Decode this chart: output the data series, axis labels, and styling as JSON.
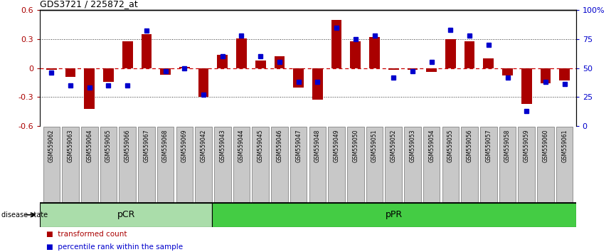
{
  "title": "GDS3721 / 225872_at",
  "samples": [
    "GSM559062",
    "GSM559063",
    "GSM559064",
    "GSM559065",
    "GSM559066",
    "GSM559067",
    "GSM559068",
    "GSM559069",
    "GSM559042",
    "GSM559043",
    "GSM559044",
    "GSM559045",
    "GSM559046",
    "GSM559047",
    "GSM559048",
    "GSM559049",
    "GSM559050",
    "GSM559051",
    "GSM559052",
    "GSM559053",
    "GSM559054",
    "GSM559055",
    "GSM559056",
    "GSM559057",
    "GSM559058",
    "GSM559059",
    "GSM559060",
    "GSM559061"
  ],
  "red_values": [
    -0.02,
    -0.09,
    -0.42,
    -0.14,
    0.28,
    0.35,
    -0.07,
    0.01,
    -0.3,
    0.14,
    0.31,
    0.08,
    0.12,
    -0.2,
    -0.33,
    0.5,
    0.28,
    0.32,
    -0.02,
    -0.02,
    -0.04,
    0.3,
    0.28,
    0.1,
    -0.08,
    -0.37,
    -0.16,
    -0.13
  ],
  "blue_values": [
    46,
    35,
    33,
    35,
    35,
    82,
    47,
    50,
    27,
    60,
    78,
    60,
    55,
    38,
    38,
    85,
    75,
    78,
    42,
    47,
    55,
    83,
    78,
    70,
    42,
    13,
    38,
    36
  ],
  "pCR_count": 9,
  "pPR_count": 19,
  "ylim": [
    -0.6,
    0.6
  ],
  "y2lim": [
    0,
    100
  ],
  "yticks": [
    -0.6,
    -0.3,
    0.0,
    0.3,
    0.6
  ],
  "y2ticks": [
    0,
    25,
    50,
    75,
    100
  ],
  "ytick_labels": [
    "-0.6",
    "-0.3",
    "0",
    "0.3",
    "0.6"
  ],
  "y2tick_labels": [
    "0",
    "25",
    "50",
    "75",
    "100%"
  ],
  "red_color": "#AA0000",
  "blue_color": "#0000CC",
  "zero_line_color": "#CC0000",
  "dot_grid_color": "#333333",
  "pCR_color": "#AADDAA",
  "pPR_color": "#44CC44",
  "bar_width": 0.55,
  "blue_marker_size": 5,
  "xtick_bg_color": "#C8C8C8",
  "xtick_border_color": "#555555",
  "ds_border_color": "#000000",
  "bg_color": "#FFFFFF"
}
